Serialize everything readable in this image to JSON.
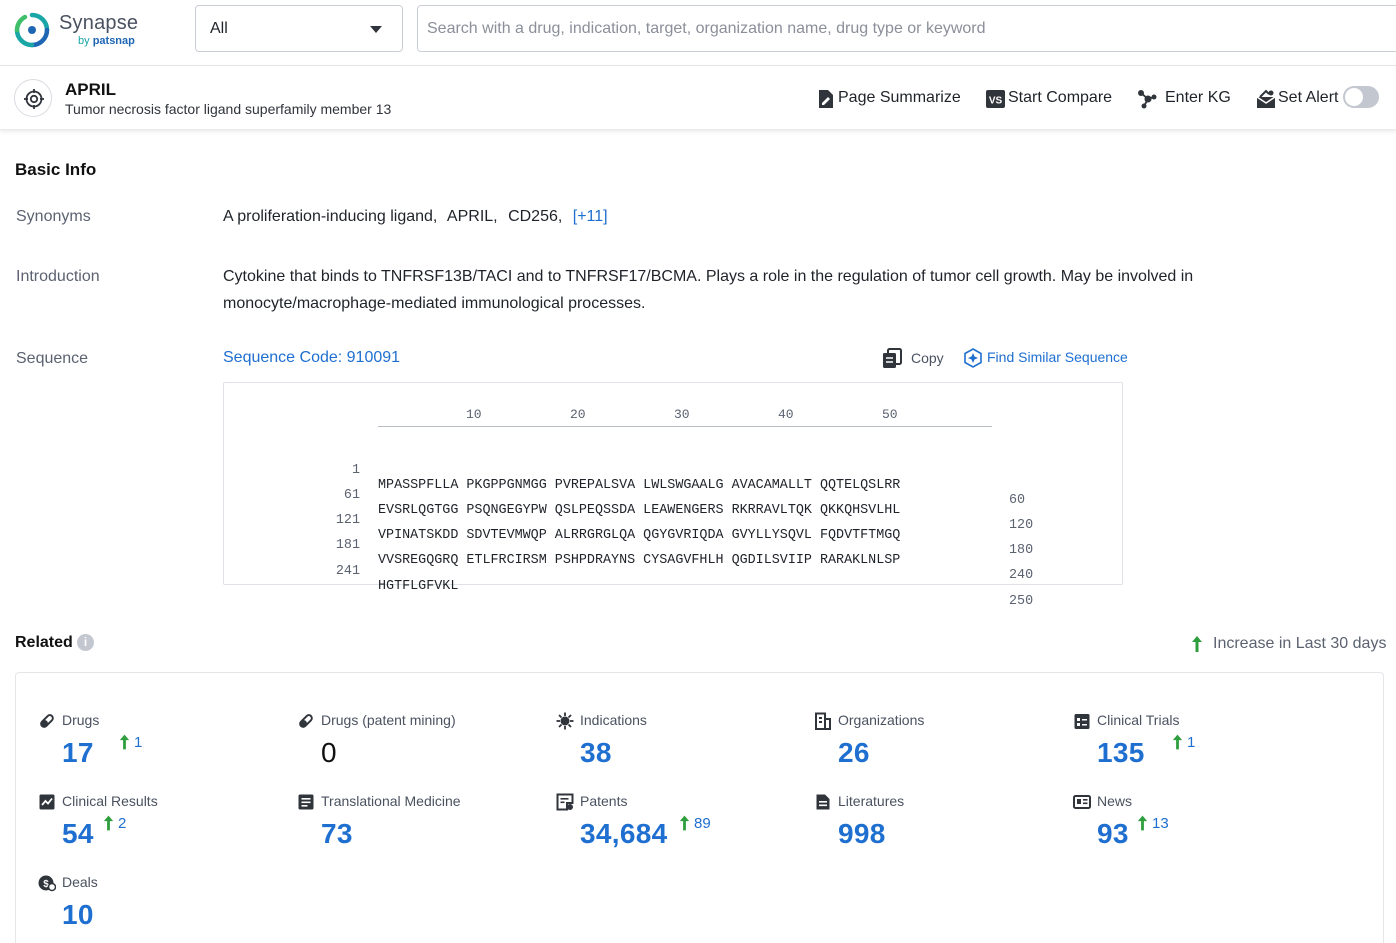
{
  "header": {
    "brand_name": "Synapse",
    "brand_sub_prefix": "by",
    "brand_sub_name": "patsnap",
    "scope": "All",
    "search_placeholder": "Search with a drug, indication, target, organization name, drug type or keyword"
  },
  "target": {
    "name": "APRIL",
    "full_name": "Tumor necrosis factor ligand superfamily member 13"
  },
  "toolbar": {
    "page_summarize": "Page Summarize",
    "start_compare": "Start Compare",
    "enter_kg": "Enter KG",
    "set_alert": "Set Alert",
    "set_alert_on": false
  },
  "basic_info": {
    "title": "Basic Info",
    "synonyms_label": "Synonyms",
    "synonyms": [
      "A proliferation-inducing ligand,",
      "APRIL,",
      "CD256,"
    ],
    "synonyms_more": "[+11]",
    "introduction_label": "Introduction",
    "introduction": "Cytokine that binds to TNFRSF13B/TACI and to TNFRSF17/BCMA. Plays a role in the regulation of tumor cell growth. May be involved in monocyte/macrophage-mediated immunological processes.",
    "sequence_label": "Sequence",
    "sequence_code": "Sequence Code: 910091",
    "copy_label": "Copy",
    "find_similar_label": "Find Similar Sequence",
    "ruler": [
      "10",
      "20",
      "30",
      "40",
      "50"
    ],
    "sequence_rows": [
      {
        "start": "1",
        "blocks": "MPASSPFLLA PKGPPGNMGG PVREPALSVA LWLSWGAALG AVACAMALLT QQTELQSLRR",
        "end": "60"
      },
      {
        "start": "61",
        "blocks": "EVSRLQGTGG PSQNGEGYPW QSLPEQSSDA LEAWENGERS RKRRAVLTQK QKKQHSVLHL",
        "end": "120"
      },
      {
        "start": "121",
        "blocks": "VPINATSKDD SDVTEVMWQP ALRRGRGLQA QGYGVRIQDA GVYLLYSQVL FQDVTFTMGQ",
        "end": "180"
      },
      {
        "start": "181",
        "blocks": "VVSREGQGRQ ETLFRCIRSM PSHPDRAYNS CYSAGVFHLH QGDILSVIIP RARAKLNLSP",
        "end": "240"
      },
      {
        "start": "241",
        "blocks": "HGTFLGFVKL",
        "end": "250"
      }
    ]
  },
  "related": {
    "title": "Related",
    "info_glyph": "i",
    "legend": "Increase in Last 30 days",
    "increase_color": "#2e9e3e",
    "stats": [
      {
        "label": "Drugs",
        "value": "17",
        "increase": "1",
        "icon": "pill-icon"
      },
      {
        "label": "Drugs (patent mining)",
        "value": "0",
        "increase": "",
        "icon": "pill-icon"
      },
      {
        "label": "Indications",
        "value": "38",
        "increase": "",
        "icon": "virus-icon"
      },
      {
        "label": "Organizations",
        "value": "26",
        "increase": "",
        "icon": "building-icon"
      },
      {
        "label": "Clinical Trials",
        "value": "135",
        "increase": "1",
        "icon": "clipboard-icon"
      },
      {
        "label": "Clinical Results",
        "value": "54",
        "increase": "2",
        "icon": "chart-report-icon"
      },
      {
        "label": "Translational Medicine",
        "value": "73",
        "increase": "",
        "icon": "document-icon"
      },
      {
        "label": "Patents",
        "value": "34,684",
        "increase": "89",
        "icon": "patent-icon"
      },
      {
        "label": "Literatures",
        "value": "998",
        "increase": "",
        "icon": "literature-icon"
      },
      {
        "label": "News",
        "value": "93",
        "increase": "13",
        "icon": "newspaper-icon"
      },
      {
        "label": "Deals",
        "value": "10",
        "increase": "",
        "icon": "deal-icon"
      }
    ]
  }
}
